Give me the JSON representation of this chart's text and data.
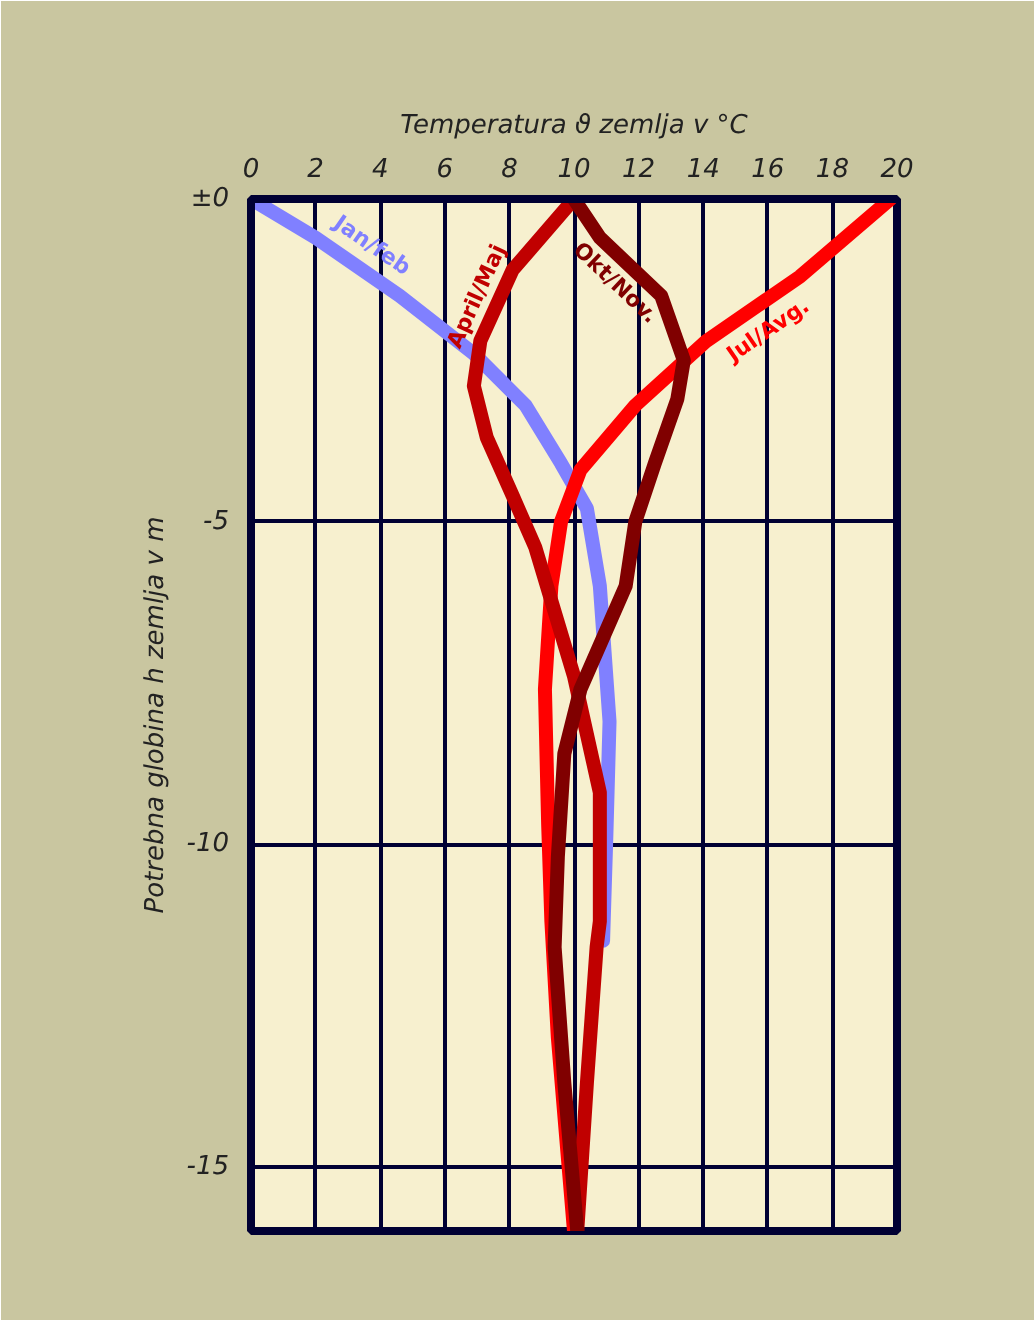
{
  "chart_data": {
    "type": "line",
    "xlabel": "Temperatura ϑ zemlja v °C",
    "ylabel": "Potrebna globina h zemlja v m",
    "xlim": [
      0,
      20
    ],
    "xticks": [
      0,
      2,
      4,
      6,
      8,
      10,
      12,
      14,
      16,
      18,
      20
    ],
    "ylim": [
      -16,
      0
    ],
    "yticks": [
      {
        "value": 0,
        "label": "±0"
      },
      -5,
      -10,
      -15
    ],
    "grid": true,
    "marker": "none",
    "line_style": "solid",
    "series": [
      {
        "name": "Jan/feb",
        "color": "#8080ff",
        "x": [
          0,
          2,
          4.6,
          6.9,
          8.5,
          9.6,
          10.4,
          10.8,
          11.1,
          11.0,
          10.9
        ],
        "values": [
          0,
          -0.6,
          -1.5,
          -2.4,
          -3.2,
          -4.1,
          -4.8,
          -6.0,
          -8.1,
          -9.9,
          -11.5
        ]
      },
      {
        "name": "Jul/Avg.",
        "color": "#ff0000",
        "x": [
          19.8,
          17.0,
          14.1,
          11.9,
          10.2,
          9.6,
          9.3,
          9.1,
          9.2,
          9.3,
          9.5,
          10.0
        ],
        "values": [
          0,
          -1.2,
          -2.2,
          -3.2,
          -4.2,
          -5.0,
          -6.0,
          -7.6,
          -9.7,
          -11.2,
          -13.0,
          -16.0
        ]
      },
      {
        "name": "April/Maj",
        "color": "#c00000",
        "x": [
          10,
          8.1,
          7.1,
          6.9,
          7.3,
          8.1,
          8.8,
          10.0,
          10.8,
          10.8,
          10.7,
          10.4,
          10.1
        ],
        "values": [
          0,
          -1.1,
          -2.2,
          -2.9,
          -3.7,
          -4.6,
          -5.4,
          -7.4,
          -9.2,
          -11.2,
          -11.6,
          -13.7,
          -16.0
        ]
      },
      {
        "name": "Okt/Nov.",
        "color": "#800000",
        "x": [
          10,
          10.8,
          12.7,
          13.4,
          13.2,
          12.5,
          11.9,
          11.6,
          10.2,
          9.7,
          9.5,
          9.4,
          9.7,
          10.1
        ],
        "values": [
          0,
          -0.6,
          -1.5,
          -2.5,
          -3.1,
          -4.1,
          -5.0,
          -6.0,
          -7.6,
          -8.6,
          -10.2,
          -11.6,
          -13.7,
          -16.0
        ]
      }
    ]
  }
}
